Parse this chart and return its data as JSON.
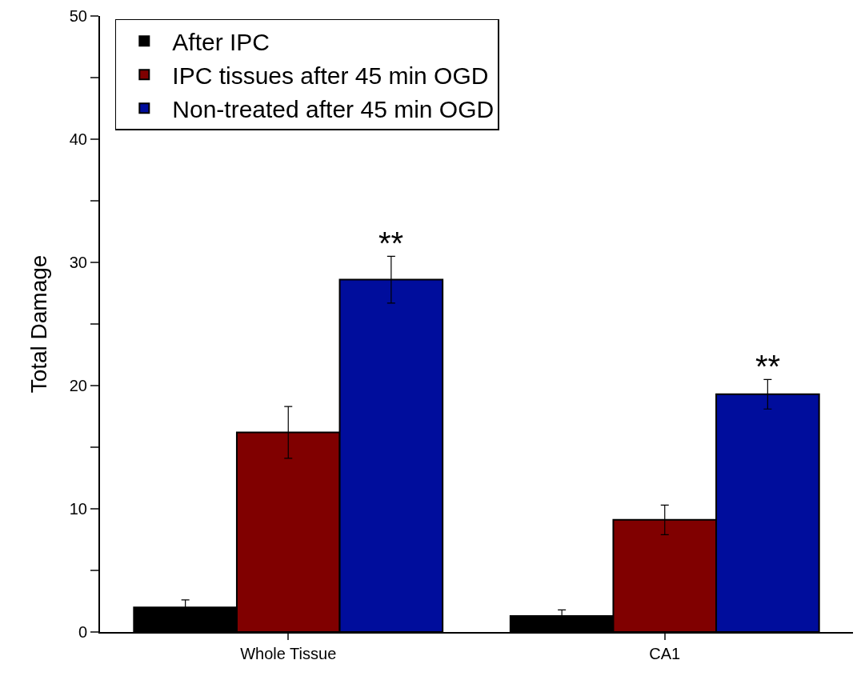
{
  "chart_data": {
    "type": "bar",
    "ylabel": "Total Damage",
    "categories": [
      "Whole Tissue",
      "CA1"
    ],
    "series": [
      {
        "name": "After IPC",
        "color": "#000000",
        "values": [
          2.0,
          1.3
        ],
        "errors": [
          0.6,
          0.5
        ]
      },
      {
        "name": "IPC tissues after 45 min OGD",
        "color": "#800000",
        "values": [
          16.2,
          9.1
        ],
        "errors": [
          2.1,
          1.2
        ]
      },
      {
        "name": "Non-treated after 45 min OGD",
        "color": "#000d9c",
        "values": [
          28.6,
          19.3
        ],
        "errors": [
          1.9,
          1.2
        ]
      }
    ],
    "ylim": [
      0,
      50
    ],
    "yticks": [
      0,
      {
        "value": 5,
        "label": null
      },
      10,
      {
        "value": 15,
        "label": null
      },
      20,
      {
        "value": 25,
        "label": null
      },
      30,
      {
        "value": 35,
        "label": null
      },
      40,
      {
        "value": 45,
        "label": null
      },
      50
    ],
    "grid": false,
    "legend": "top left",
    "annotations": [
      "**",
      "**"
    ]
  }
}
